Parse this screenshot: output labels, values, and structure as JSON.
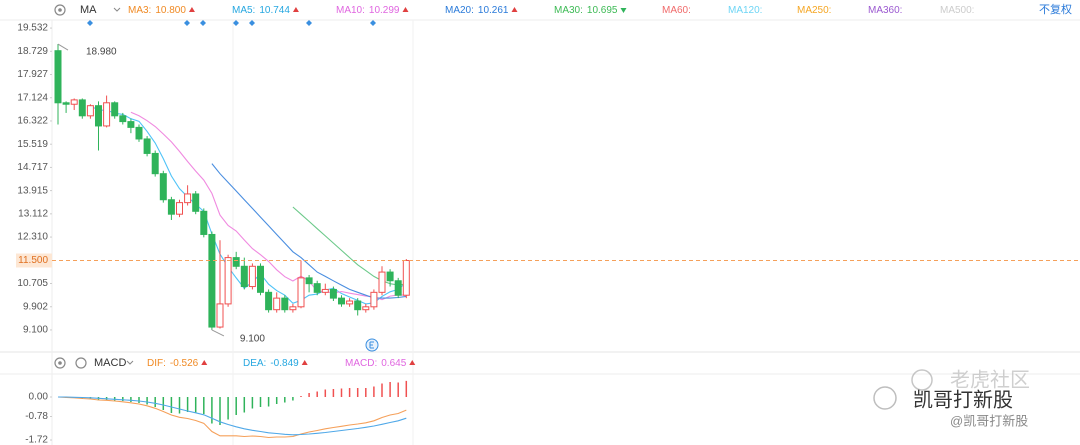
{
  "chart_data": [
    {
      "type": "candlestick",
      "indicator": "MA",
      "adjust": "不复权",
      "header_items": [
        {
          "label": "MA3:",
          "value": 10.8,
          "value_label": "10.800",
          "color": "#f08a24",
          "trend": "up"
        },
        {
          "label": "MA5:",
          "value": 10.744,
          "color": "#26a7e0",
          "trend": "up"
        },
        {
          "label": "MA10:",
          "value": 10.299,
          "color": "#e066e0",
          "trend": "up"
        },
        {
          "label": "MA20:",
          "value": 10.261,
          "color": "#2a7ad9",
          "trend": "up"
        },
        {
          "label": "MA30:",
          "value": 10.695,
          "color": "#3cba54",
          "trend": "down"
        },
        {
          "label": "MA60:",
          "color": "#f06a6a"
        },
        {
          "label": "MA120:",
          "color": "#6dd5f5"
        },
        {
          "label": "MA250:",
          "color": "#f5a623"
        },
        {
          "label": "MA360:",
          "color": "#9b59d0"
        },
        {
          "label": "MA500:",
          "color": "#cccccc"
        }
      ],
      "up_color": "#f05050",
      "down_color": "#2fb35a",
      "open": [
        18.75,
        16.95,
        16.9,
        17.05,
        16.5,
        16.85,
        16.15,
        16.95,
        16.5,
        16.3,
        16.1,
        15.7,
        15.2,
        14.5,
        13.6,
        13.1,
        13.5,
        13.8,
        13.2,
        12.4,
        9.2,
        10.0,
        11.6,
        11.3,
        10.6,
        11.3,
        10.4,
        9.8,
        10.2,
        9.8,
        9.9,
        10.9,
        10.7,
        10.4,
        10.5,
        10.2,
        10.0,
        10.1,
        9.8,
        9.9,
        10.4,
        11.1,
        10.8,
        10.3
      ],
      "high": [
        18.98,
        17.0,
        17.1,
        17.1,
        16.9,
        17.0,
        17.2,
        17.0,
        16.6,
        16.4,
        16.2,
        15.8,
        15.3,
        14.6,
        13.7,
        13.6,
        14.1,
        13.9,
        13.3,
        12.5,
        12.2,
        11.7,
        11.8,
        11.6,
        11.4,
        11.4,
        10.5,
        10.4,
        10.3,
        10.0,
        11.5,
        11.0,
        10.8,
        10.7,
        10.6,
        10.3,
        10.2,
        10.2,
        10.0,
        10.5,
        11.3,
        11.2,
        10.9,
        11.55
      ],
      "low": [
        16.2,
        16.6,
        16.7,
        16.4,
        16.4,
        15.3,
        16.1,
        16.4,
        16.2,
        15.9,
        15.6,
        15.1,
        14.4,
        13.5,
        12.9,
        13.0,
        13.4,
        13.1,
        12.3,
        9.1,
        9.15,
        9.9,
        11.2,
        10.5,
        10.5,
        10.3,
        9.7,
        9.7,
        9.7,
        9.7,
        9.85,
        10.4,
        10.3,
        10.3,
        10.1,
        9.9,
        9.9,
        9.6,
        9.7,
        9.8,
        10.3,
        10.6,
        10.2,
        10.2
      ],
      "close": [
        16.95,
        16.9,
        17.05,
        16.5,
        16.85,
        16.15,
        16.95,
        16.5,
        16.3,
        16.1,
        15.7,
        15.2,
        14.5,
        13.6,
        13.1,
        13.5,
        13.8,
        13.2,
        12.4,
        9.2,
        10.0,
        11.6,
        11.3,
        10.6,
        11.3,
        10.4,
        9.8,
        10.2,
        9.8,
        9.9,
        10.9,
        10.7,
        10.4,
        10.5,
        10.2,
        10.0,
        10.1,
        9.8,
        9.9,
        10.4,
        11.1,
        10.8,
        10.3,
        11.5
      ],
      "series": [
        {
          "name": "MA5",
          "color": "#4fc3f7",
          "values": [
            null,
            null,
            null,
            null,
            16.85,
            16.69,
            16.7,
            16.59,
            16.55,
            16.4,
            16.31,
            15.96,
            15.56,
            15.02,
            14.42,
            13.98,
            13.7,
            13.44,
            13.2,
            12.42,
            11.72,
            11.28,
            10.9,
            10.54,
            10.76,
            11.04,
            10.68,
            10.46,
            10.3,
            10.02,
            10.12,
            10.3,
            10.34,
            10.48,
            10.54,
            10.36,
            10.24,
            10.12,
            10.0,
            10.04,
            10.26,
            10.42,
            10.5,
            10.74
          ]
        },
        {
          "name": "MA10",
          "color": "#f08ae0",
          "values": [
            null,
            null,
            null,
            null,
            null,
            null,
            null,
            null,
            null,
            16.62,
            16.5,
            16.33,
            16.13,
            15.87,
            15.6,
            15.27,
            14.92,
            14.59,
            14.28,
            13.82,
            13.07,
            12.71,
            12.52,
            12.21,
            11.91,
            11.7,
            11.47,
            11.18,
            10.94,
            10.79,
            10.96,
            10.79,
            10.44,
            10.43,
            10.37,
            10.43,
            10.37,
            10.32,
            10.27,
            10.25,
            10.15,
            10.27,
            10.31,
            10.3
          ]
        },
        {
          "name": "MA20",
          "color": "#4a8ee0",
          "values": [
            null,
            null,
            null,
            null,
            null,
            null,
            null,
            null,
            null,
            null,
            null,
            null,
            null,
            null,
            null,
            null,
            null,
            null,
            null,
            14.85,
            14.5,
            14.2,
            13.9,
            13.6,
            13.3,
            13.0,
            12.7,
            12.4,
            12.1,
            11.8,
            11.6,
            11.35,
            11.1,
            10.95,
            10.8,
            10.65,
            10.5,
            10.4,
            10.3,
            10.2,
            10.2,
            10.2,
            10.22,
            10.26
          ]
        },
        {
          "name": "MA30",
          "color": "#6cc98a",
          "values": [
            null,
            null,
            null,
            null,
            null,
            null,
            null,
            null,
            null,
            null,
            null,
            null,
            null,
            null,
            null,
            null,
            null,
            null,
            null,
            null,
            null,
            null,
            null,
            null,
            null,
            null,
            null,
            null,
            null,
            13.35,
            13.1,
            12.85,
            12.6,
            12.35,
            12.1,
            11.85,
            11.6,
            11.35,
            11.15,
            10.95,
            10.8,
            10.7,
            10.65,
            10.69
          ]
        }
      ],
      "high_label": {
        "value": 18.98,
        "label": "18.980"
      },
      "low_label": {
        "value": 9.1,
        "label": "9.100"
      },
      "last_price": {
        "value": 11.5,
        "label": "11.500",
        "color": "#f5a05a"
      },
      "ylim": [
        8.58,
        19.88
      ],
      "yticks": [
        19.532,
        18.729,
        17.927,
        17.124,
        16.322,
        15.519,
        14.717,
        13.915,
        13.112,
        {
          "value": 12.31,
          "label": "12.310"
        },
        10.705,
        9.902,
        {
          "value": 9.1,
          "label": "9.100"
        }
      ]
    },
    {
      "type": "macd",
      "title": "MACD",
      "header_items": [
        {
          "label": "DIF:",
          "value": -0.526,
          "color": "#f08a24",
          "trend": "up"
        },
        {
          "label": "DEA:",
          "value": -0.849,
          "color": "#26a7e0",
          "trend": "up"
        },
        {
          "label": "MACD:",
          "value": 0.645,
          "color": "#e066e0",
          "trend": "up"
        }
      ],
      "series": [
        {
          "name": "DIF",
          "color": "#f5a05a",
          "values": [
            0,
            -0.02,
            -0.03,
            -0.06,
            -0.08,
            -0.12,
            -0.13,
            -0.16,
            -0.19,
            -0.23,
            -0.28,
            -0.35,
            -0.45,
            -0.58,
            -0.72,
            -0.81,
            -0.86,
            -0.94,
            -1.05,
            -1.38,
            -1.55,
            -1.55,
            -1.55,
            -1.58,
            -1.56,
            -1.58,
            -1.62,
            -1.6,
            -1.6,
            -1.58,
            -1.48,
            -1.4,
            -1.34,
            -1.27,
            -1.22,
            -1.17,
            -1.12,
            -1.08,
            -1.03,
            -0.95,
            -0.82,
            -0.72,
            -0.66,
            -0.526
          ]
        },
        {
          "name": "DEA",
          "color": "#4fa8e8",
          "values": [
            0,
            0,
            -0.01,
            -0.02,
            -0.03,
            -0.05,
            -0.07,
            -0.09,
            -0.11,
            -0.13,
            -0.16,
            -0.2,
            -0.25,
            -0.32,
            -0.4,
            -0.48,
            -0.56,
            -0.63,
            -0.71,
            -0.85,
            -0.99,
            -1.1,
            -1.19,
            -1.27,
            -1.33,
            -1.38,
            -1.43,
            -1.46,
            -1.49,
            -1.51,
            -1.5,
            -1.48,
            -1.45,
            -1.42,
            -1.38,
            -1.34,
            -1.3,
            -1.26,
            -1.21,
            -1.16,
            -1.09,
            -1.02,
            -0.95,
            -0.849
          ]
        }
      ],
      "bars": {
        "name": "MACD",
        "up_color": "#f05050",
        "down_color": "#2fb35a",
        "values": [
          0,
          -0.04,
          -0.04,
          -0.08,
          -0.1,
          -0.14,
          -0.12,
          -0.14,
          -0.16,
          -0.2,
          -0.24,
          -0.3,
          -0.4,
          -0.52,
          -0.64,
          -0.66,
          -0.6,
          -0.62,
          -0.68,
          -1.06,
          -1.12,
          -0.9,
          -0.72,
          -0.62,
          -0.46,
          -0.4,
          -0.38,
          -0.28,
          -0.22,
          -0.14,
          0.04,
          0.16,
          0.22,
          0.3,
          0.32,
          0.34,
          0.36,
          0.36,
          0.36,
          0.42,
          0.54,
          0.6,
          0.58,
          0.645
        ]
      },
      "ylim": [
        -1.92,
        0.88
      ],
      "yticks": [
        {
          "value": 0,
          "label": "0.00"
        },
        -0.78,
        -1.72
      ]
    }
  ],
  "watermarks": [
    "老虎社区",
    "凯哥打新股",
    "@凯哥打新股"
  ]
}
